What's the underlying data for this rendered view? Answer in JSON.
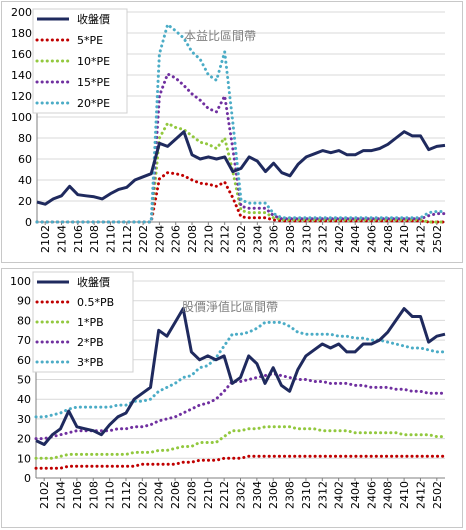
{
  "chart_data": [
    {
      "type": "line",
      "title": "本益比區間帶",
      "xlabel": "",
      "ylabel": "",
      "ylim": [
        0,
        200
      ],
      "yticks": [
        "0",
        "20",
        "40",
        "60",
        "80",
        "100",
        "120",
        "140",
        "160",
        "180",
        "200"
      ],
      "tick_labels": [
        "2102",
        "2104",
        "2106",
        "2108",
        "2110",
        "2112",
        "2202",
        "2204",
        "2206",
        "2208",
        "2210",
        "2212",
        "2302",
        "2304",
        "2306",
        "2308",
        "2310",
        "2312",
        "2402",
        "2404",
        "2406",
        "2408",
        "2410",
        "2412",
        "2502"
      ],
      "categories": [
        "2101",
        "2102",
        "2103",
        "2104",
        "2105",
        "2106",
        "2107",
        "2108",
        "2109",
        "2110",
        "2111",
        "2112",
        "2201",
        "2202",
        "2203",
        "2204",
        "2205",
        "2206",
        "2207",
        "2208",
        "2209",
        "2210",
        "2211",
        "2212",
        "2301",
        "2302",
        "2303",
        "2304",
        "2305",
        "2306",
        "2307",
        "2308",
        "2309",
        "2310",
        "2311",
        "2312",
        "2401",
        "2402",
        "2403",
        "2404",
        "2405",
        "2406",
        "2407",
        "2408",
        "2409",
        "2410",
        "2411",
        "2412",
        "2501",
        "2502",
        "2503"
      ],
      "legend_position": "top-left",
      "grid": "horizontal",
      "series": [
        {
          "name": "收盤價",
          "color": "#1f2a5e",
          "style": "solid",
          "values": [
            19,
            17,
            22,
            25,
            34,
            26,
            25,
            24,
            22,
            27,
            31,
            33,
            40,
            43,
            46,
            75,
            72,
            79,
            86,
            64,
            60,
            62,
            60,
            62,
            48,
            51,
            62,
            58,
            48,
            56,
            47,
            44,
            55,
            62,
            65,
            68,
            66,
            68,
            64,
            64,
            68,
            68,
            70,
            74,
            80,
            86,
            82,
            82,
            69,
            72,
            73
          ]
        },
        {
          "name": "5*PE",
          "color": "#c00000",
          "style": "dotted",
          "values": [
            0,
            0,
            0,
            0,
            0,
            0,
            0,
            0,
            0,
            0,
            0,
            0,
            0,
            0,
            0,
            41,
            47,
            46,
            44,
            40,
            37,
            36,
            34,
            38,
            23,
            5,
            4,
            4,
            4,
            2,
            1,
            1,
            1,
            1,
            1,
            1,
            1,
            1,
            1,
            1,
            1,
            1,
            1,
            1,
            1,
            1,
            1,
            1,
            0,
            0,
            0
          ]
        },
        {
          "name": "10*PE",
          "color": "#92c83e",
          "style": "dotted",
          "values": [
            0,
            0,
            0,
            0,
            0,
            0,
            0,
            0,
            0,
            0,
            0,
            0,
            0,
            0,
            0,
            80,
            94,
            90,
            88,
            82,
            76,
            74,
            70,
            80,
            48,
            11,
            9,
            9,
            9,
            4,
            2,
            2,
            2,
            2,
            2,
            2,
            2,
            2,
            2,
            2,
            2,
            2,
            2,
            2,
            2,
            2,
            2,
            2,
            0,
            0,
            0
          ]
        },
        {
          "name": "15*PE",
          "color": "#7030a0",
          "style": "dotted",
          "values": [
            0,
            0,
            0,
            0,
            0,
            0,
            0,
            0,
            0,
            0,
            0,
            0,
            0,
            0,
            0,
            120,
            141,
            137,
            130,
            122,
            116,
            108,
            105,
            120,
            70,
            15,
            13,
            13,
            13,
            6,
            3,
            3,
            3,
            3,
            3,
            3,
            3,
            3,
            3,
            3,
            3,
            3,
            3,
            3,
            3,
            3,
            3,
            3,
            6,
            8,
            8
          ]
        },
        {
          "name": "20*PE",
          "color": "#4bacc6",
          "style": "dotted",
          "values": [
            0,
            0,
            0,
            0,
            0,
            0,
            0,
            0,
            0,
            0,
            0,
            0,
            0,
            0,
            0,
            160,
            188,
            182,
            175,
            162,
            155,
            140,
            135,
            162,
            95,
            21,
            18,
            18,
            18,
            8,
            4,
            4,
            4,
            4,
            4,
            4,
            4,
            4,
            4,
            4,
            4,
            4,
            4,
            4,
            4,
            4,
            4,
            4,
            9,
            10,
            10
          ]
        }
      ]
    },
    {
      "type": "line",
      "title": "股價淨值比區間帶",
      "xlabel": "",
      "ylabel": "",
      "ylim": [
        0,
        100
      ],
      "yticks": [
        "0",
        "10",
        "20",
        "30",
        "40",
        "50",
        "60",
        "70",
        "80",
        "90",
        "100"
      ],
      "tick_labels": [
        "2102",
        "2104",
        "2106",
        "2108",
        "2110",
        "2112",
        "2202",
        "2204",
        "2206",
        "2208",
        "2210",
        "2212",
        "2302",
        "2304",
        "2306",
        "2308",
        "2310",
        "2312",
        "2402",
        "2404",
        "2406",
        "2408",
        "2410",
        "2412",
        "2502"
      ],
      "categories": [
        "2101",
        "2102",
        "2103",
        "2104",
        "2105",
        "2106",
        "2107",
        "2108",
        "2109",
        "2110",
        "2111",
        "2112",
        "2201",
        "2202",
        "2203",
        "2204",
        "2205",
        "2206",
        "2207",
        "2208",
        "2209",
        "2210",
        "2211",
        "2212",
        "2301",
        "2302",
        "2303",
        "2304",
        "2305",
        "2306",
        "2307",
        "2308",
        "2309",
        "2310",
        "2311",
        "2312",
        "2401",
        "2402",
        "2403",
        "2404",
        "2405",
        "2406",
        "2407",
        "2408",
        "2409",
        "2410",
        "2411",
        "2412",
        "2501",
        "2502",
        "2503"
      ],
      "legend_position": "top-left",
      "grid": "horizontal",
      "series": [
        {
          "name": "收盤價",
          "color": "#1f2a5e",
          "style": "solid",
          "values": [
            19,
            17,
            22,
            25,
            34,
            26,
            25,
            24,
            22,
            27,
            31,
            33,
            40,
            43,
            46,
            75,
            72,
            79,
            86,
            64,
            60,
            62,
            60,
            62,
            48,
            51,
            62,
            58,
            48,
            56,
            47,
            44,
            55,
            62,
            65,
            68,
            66,
            68,
            64,
            64,
            68,
            68,
            70,
            74,
            80,
            86,
            82,
            82,
            69,
            72,
            73
          ]
        },
        {
          "name": "0.5*PB",
          "color": "#c00000",
          "style": "dotted",
          "values": [
            5,
            5,
            5,
            5,
            6,
            6,
            6,
            6,
            6,
            6,
            6,
            6,
            6,
            7,
            7,
            7,
            7,
            7,
            8,
            8,
            9,
            9,
            9,
            10,
            10,
            10,
            11,
            11,
            11,
            11,
            11,
            11,
            11,
            11,
            11,
            11,
            11,
            11,
            11,
            11,
            11,
            11,
            11,
            11,
            11,
            11,
            11,
            11,
            11,
            11,
            11
          ]
        },
        {
          "name": "1*PB",
          "color": "#92c83e",
          "style": "dotted",
          "values": [
            10,
            10,
            10,
            11,
            12,
            12,
            12,
            12,
            12,
            12,
            12,
            12,
            13,
            13,
            13,
            14,
            14,
            15,
            16,
            16,
            18,
            18,
            18,
            21,
            24,
            24,
            25,
            25,
            26,
            26,
            26,
            26,
            25,
            25,
            25,
            24,
            24,
            24,
            24,
            23,
            23,
            23,
            23,
            23,
            23,
            22,
            22,
            22,
            22,
            21,
            21
          ]
        },
        {
          "name": "2*PB",
          "color": "#7030a0",
          "style": "dotted",
          "values": [
            20,
            20,
            21,
            22,
            23,
            24,
            24,
            24,
            24,
            24,
            25,
            25,
            26,
            26,
            27,
            29,
            30,
            31,
            33,
            35,
            37,
            38,
            40,
            44,
            49,
            49,
            50,
            51,
            52,
            53,
            52,
            51,
            50,
            50,
            49,
            49,
            48,
            48,
            48,
            47,
            47,
            46,
            46,
            46,
            45,
            45,
            44,
            44,
            43,
            43,
            43
          ]
        },
        {
          "name": "3*PB",
          "color": "#4bacc6",
          "style": "dotted",
          "values": [
            31,
            31,
            32,
            33,
            35,
            36,
            36,
            36,
            36,
            36,
            37,
            37,
            39,
            39,
            40,
            44,
            46,
            48,
            51,
            52,
            56,
            57,
            61,
            67,
            73,
            73,
            74,
            76,
            79,
            79,
            79,
            77,
            74,
            73,
            73,
            73,
            73,
            72,
            72,
            71,
            71,
            70,
            70,
            69,
            68,
            67,
            66,
            66,
            65,
            64,
            64
          ]
        }
      ]
    }
  ]
}
